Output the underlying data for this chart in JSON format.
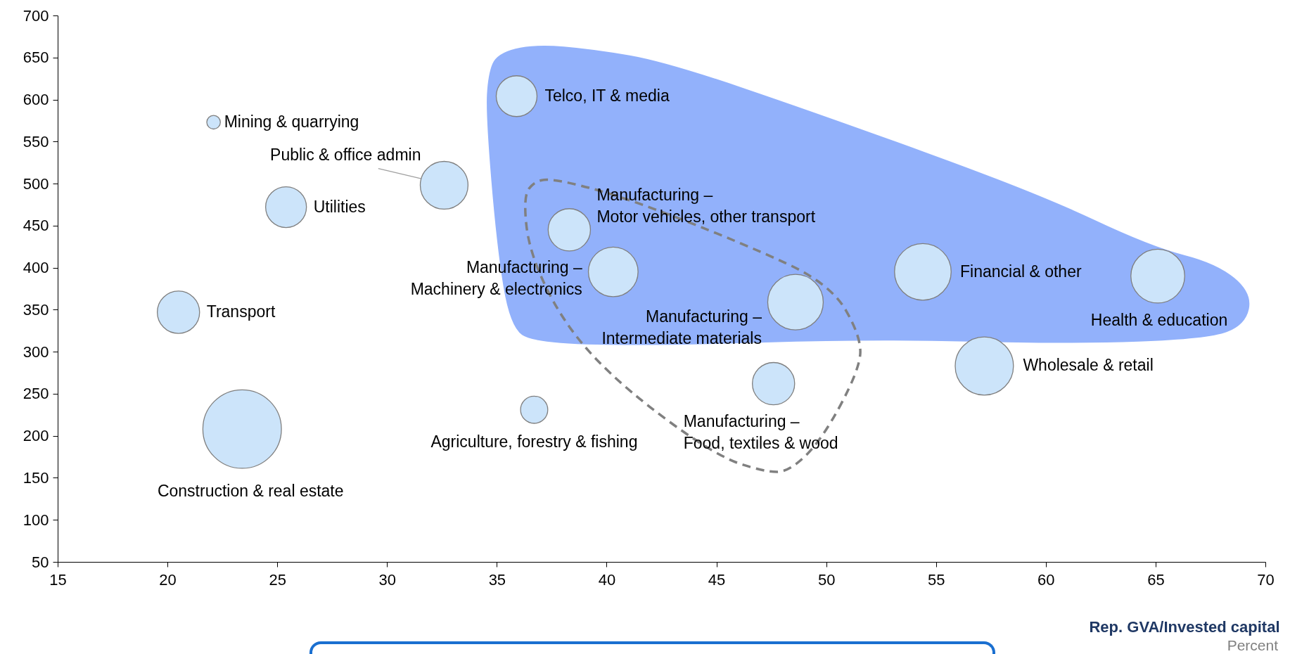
{
  "chart_data": {
    "type": "bubble",
    "xlabel": "Rep. GVA/Invested capital",
    "annotations": [
      "Percent"
    ],
    "xlim": [
      15,
      70
    ],
    "xticks": [
      15,
      20,
      25,
      30,
      35,
      40,
      45,
      50,
      55,
      60,
      65,
      70
    ],
    "ylim": [
      50,
      700
    ],
    "yticks": [
      50,
      100,
      150,
      200,
      250,
      300,
      350,
      400,
      450,
      500,
      550,
      600,
      650,
      700
    ],
    "series": [
      {
        "name": "Mining & quarrying",
        "color": "#cce4fa",
        "x": [
          22.1
        ],
        "values": [
          573
        ],
        "sizes": [
          0.03
        ]
      },
      {
        "name": "Telco, IT & media",
        "color": "#cce4fa",
        "x": [
          35.9
        ],
        "values": [
          604
        ],
        "sizes": [
          0.27
        ]
      },
      {
        "name": "Public & office admin",
        "color": "#cce4fa",
        "x": [
          32.6
        ],
        "values": [
          498
        ],
        "sizes": [
          0.37
        ]
      },
      {
        "name": "Utilities",
        "color": "#cce4fa",
        "x": [
          25.4
        ],
        "values": [
          472
        ],
        "sizes": [
          0.27
        ]
      },
      {
        "name": "Transport",
        "color": "#cce4fa",
        "x": [
          20.5
        ],
        "values": [
          347
        ],
        "sizes": [
          0.29
        ]
      },
      {
        "name": "Construction & real estate",
        "color": "#cce4fa",
        "x": [
          23.4
        ],
        "values": [
          208
        ],
        "sizes": [
          1
        ]
      },
      {
        "name": "Agriculture, forestry & fishing",
        "color": "#cce4fa",
        "x": [
          36.7
        ],
        "values": [
          231
        ],
        "sizes": [
          0.12
        ]
      },
      {
        "name": "Manufacturing –\nMotor vehicles, other transport",
        "color": "#cce4fa",
        "x": [
          38.3
        ],
        "values": [
          445
        ],
        "sizes": [
          0.29
        ]
      },
      {
        "name": "Manufacturing –\nMachinery & electronics",
        "color": "#cce4fa",
        "x": [
          40.3
        ],
        "values": [
          395
        ],
        "sizes": [
          0.4
        ]
      },
      {
        "name": "Manufacturing –\nIntermediate materials",
        "color": "#cce4fa",
        "x": [
          48.6
        ],
        "values": [
          359
        ],
        "sizes": [
          0.5
        ]
      },
      {
        "name": "Manufacturing –\nFood, textiles & wood",
        "color": "#cce4fa",
        "x": [
          47.6
        ],
        "values": [
          262
        ],
        "sizes": [
          0.29
        ]
      },
      {
        "name": "Financial & other",
        "color": "#cce4fa",
        "x": [
          54.4
        ],
        "values": [
          395
        ],
        "sizes": [
          0.52
        ]
      },
      {
        "name": "Wholesale & retail",
        "color": "#cce4fa",
        "x": [
          57.2
        ],
        "values": [
          283
        ],
        "sizes": [
          0.55
        ]
      },
      {
        "name": "Health & education",
        "color": "#cce4fa",
        "x": [
          65.1
        ],
        "values": [
          390
        ],
        "sizes": [
          0.47
        ]
      }
    ]
  }
}
